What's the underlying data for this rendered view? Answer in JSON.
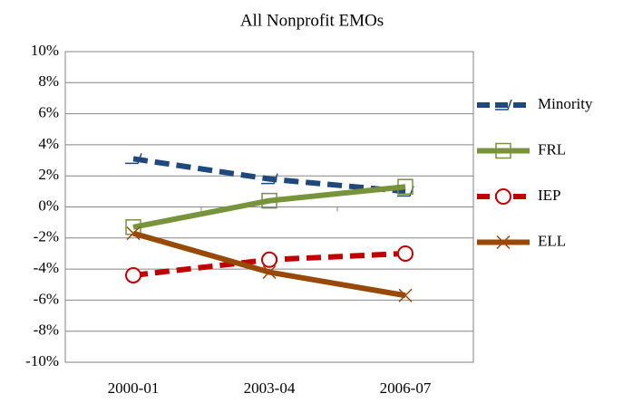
{
  "chart_data": {
    "type": "line",
    "title": "All Nonprofit EMOs",
    "categories": [
      "2000-01",
      "2003-04",
      "2006-07"
    ],
    "series": [
      {
        "name": "Minority",
        "color": "#1f497d",
        "dash": true,
        "marker": "dash",
        "values": [
          3.1,
          1.8,
          1.0
        ]
      },
      {
        "name": "FRL",
        "color": "#77933c",
        "dash": false,
        "marker": "square",
        "values": [
          -1.3,
          0.4,
          1.3
        ]
      },
      {
        "name": "IEP",
        "color": "#c00000",
        "dash": true,
        "marker": "circle",
        "values": [
          -4.4,
          -3.4,
          -3.0
        ]
      },
      {
        "name": "ELL",
        "color": "#984807",
        "dash": false,
        "marker": "x",
        "values": [
          -1.7,
          -4.2,
          -5.7
        ]
      }
    ],
    "ylim": [
      -10,
      10
    ],
    "yticks": [
      {
        "value": -10,
        "label": "-10%"
      },
      {
        "value": -8,
        "label": "-8%"
      },
      {
        "value": -6,
        "label": "-6%"
      },
      {
        "value": -4,
        "label": "-4%"
      },
      {
        "value": -2,
        "label": "-2%"
      },
      {
        "value": 0,
        "label": "0%"
      },
      {
        "value": 2,
        "label": "2%"
      },
      {
        "value": 4,
        "label": "4%"
      },
      {
        "value": 6,
        "label": "6%"
      },
      {
        "value": 8,
        "label": "8%"
      },
      {
        "value": 10,
        "label": "10%"
      }
    ],
    "grid": true,
    "legend": "right"
  }
}
